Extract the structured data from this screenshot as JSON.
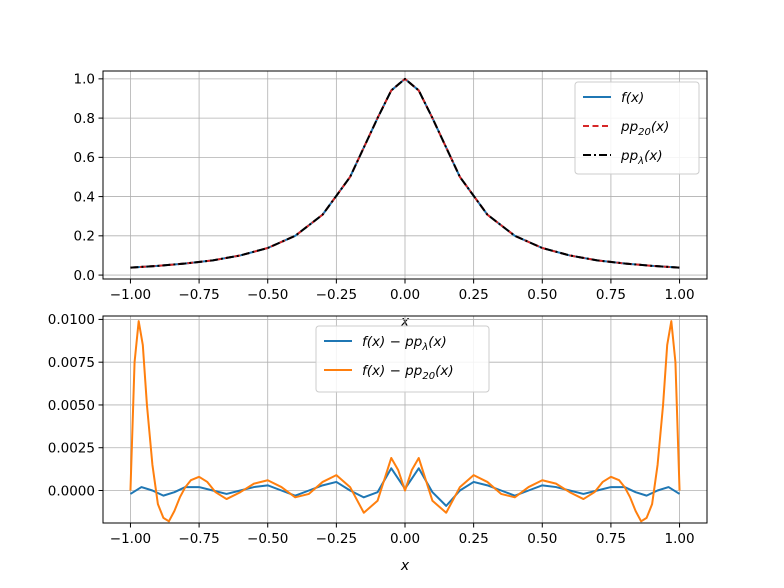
{
  "chart_data": [
    {
      "type": "line",
      "id": "top",
      "title": "",
      "xlabel": "x",
      "ylabel": "",
      "xlim": [
        -1.1,
        1.1
      ],
      "ylim": [
        -0.02,
        1.04
      ],
      "grid": true,
      "legend_position": "top-right",
      "xticks": [
        -1.0,
        -0.75,
        -0.5,
        -0.25,
        0.0,
        0.25,
        0.5,
        0.75,
        1.0
      ],
      "xtick_labels": [
        "−1.00",
        "−0.75",
        "−0.50",
        "−0.25",
        "0.00",
        "0.25",
        "0.50",
        "0.75",
        "1.00"
      ],
      "yticks": [
        0.0,
        0.2,
        0.4,
        0.6,
        0.8,
        1.0
      ],
      "ytick_labels": [
        "0.0",
        "0.2",
        "0.4",
        "0.6",
        "0.8",
        "1.0"
      ],
      "x": [
        -1.0,
        -0.9,
        -0.8,
        -0.7,
        -0.6,
        -0.5,
        -0.4,
        -0.3,
        -0.2,
        -0.1,
        -0.05,
        0.0,
        0.05,
        0.1,
        0.2,
        0.3,
        0.4,
        0.5,
        0.6,
        0.7,
        0.8,
        0.9,
        1.0
      ],
      "series": [
        {
          "name": "f(x)",
          "color": "#1f77b4",
          "dash": "solid",
          "values": [
            0.038,
            0.047,
            0.059,
            0.075,
            0.1,
            0.138,
            0.2,
            0.308,
            0.5,
            0.8,
            0.941,
            1.0,
            0.941,
            0.8,
            0.5,
            0.308,
            0.2,
            0.138,
            0.1,
            0.075,
            0.059,
            0.047,
            0.038
          ]
        },
        {
          "name": "pp20(x)",
          "color": "#d62728",
          "dash": "dashed",
          "values": [
            0.038,
            0.047,
            0.059,
            0.075,
            0.1,
            0.138,
            0.2,
            0.308,
            0.5,
            0.8,
            0.941,
            1.0,
            0.941,
            0.8,
            0.5,
            0.308,
            0.2,
            0.138,
            0.1,
            0.075,
            0.059,
            0.047,
            0.038
          ]
        },
        {
          "name": "ppλ(x)",
          "color": "#000000",
          "dash": "dashdot",
          "values": [
            0.038,
            0.047,
            0.059,
            0.075,
            0.1,
            0.138,
            0.2,
            0.308,
            0.5,
            0.8,
            0.941,
            1.0,
            0.941,
            0.8,
            0.5,
            0.308,
            0.2,
            0.138,
            0.1,
            0.075,
            0.059,
            0.047,
            0.038
          ]
        }
      ],
      "legend": [
        {
          "math": "f",
          "plain": "(x)",
          "sub": "",
          "color": "#1f77b4",
          "dash": "solid"
        },
        {
          "math": "pp",
          "plain": "(x)",
          "sub": "20",
          "color": "#d62728",
          "dash": "dashed"
        },
        {
          "math": "pp",
          "plain": "(x)",
          "sub": "λ",
          "color": "#000000",
          "dash": "dashdot"
        }
      ]
    },
    {
      "type": "line",
      "id": "bottom",
      "title": "",
      "xlabel": "x",
      "ylabel": "",
      "xlim": [
        -1.1,
        1.1
      ],
      "ylim": [
        -0.0019,
        0.0102
      ],
      "grid": true,
      "legend_position": "top-center",
      "xticks": [
        -1.0,
        -0.75,
        -0.5,
        -0.25,
        0.0,
        0.25,
        0.5,
        0.75,
        1.0
      ],
      "xtick_labels": [
        "−1.00",
        "−0.75",
        "−0.50",
        "−0.25",
        "0.00",
        "0.25",
        "0.50",
        "0.75",
        "1.00"
      ],
      "yticks": [
        0.0,
        0.0025,
        0.005,
        0.0075,
        0.01
      ],
      "ytick_labels": [
        "0.0000",
        "0.0025",
        "0.0050",
        "0.0075",
        "0.0100"
      ],
      "series": [
        {
          "name": "f(x) − ppλ(x)",
          "color": "#1f77b4",
          "x": [
            -1.0,
            -0.96,
            -0.92,
            -0.88,
            -0.84,
            -0.8,
            -0.75,
            -0.7,
            -0.65,
            -0.6,
            -0.55,
            -0.5,
            -0.45,
            -0.4,
            -0.35,
            -0.3,
            -0.25,
            -0.2,
            -0.15,
            -0.1,
            -0.05,
            0.0,
            0.05,
            0.1,
            0.15,
            0.2,
            0.25,
            0.3,
            0.35,
            0.4,
            0.45,
            0.5,
            0.55,
            0.6,
            0.65,
            0.7,
            0.75,
            0.8,
            0.84,
            0.88,
            0.92,
            0.96,
            1.0
          ],
          "values": [
            -0.0002,
            0.0002,
            0.0,
            -0.0003,
            -0.0001,
            0.0002,
            0.0002,
            0.0,
            -0.0002,
            0.0,
            0.0002,
            0.0003,
            0.0,
            -0.0003,
            0.0,
            0.0003,
            0.0005,
            0.0,
            -0.0004,
            -0.0001,
            0.0013,
            0.0001,
            0.0013,
            -0.0001,
            -0.0009,
            0.0,
            0.0005,
            0.0003,
            0.0,
            -0.0003,
            0.0,
            0.0003,
            0.0002,
            0.0,
            -0.0002,
            0.0,
            0.0002,
            0.0002,
            -0.0001,
            -0.0003,
            0.0,
            0.0002,
            -0.0002
          ]
        },
        {
          "name": "f(x) − pp20(x)",
          "color": "#ff7f0e",
          "x": [
            -1.0,
            -0.985,
            -0.97,
            -0.955,
            -0.94,
            -0.92,
            -0.9,
            -0.88,
            -0.86,
            -0.84,
            -0.82,
            -0.8,
            -0.78,
            -0.75,
            -0.72,
            -0.69,
            -0.65,
            -0.6,
            -0.55,
            -0.5,
            -0.45,
            -0.4,
            -0.35,
            -0.3,
            -0.25,
            -0.2,
            -0.15,
            -0.1,
            -0.05,
            -0.025,
            0.0,
            0.025,
            0.05,
            0.1,
            0.15,
            0.2,
            0.25,
            0.3,
            0.35,
            0.4,
            0.45,
            0.5,
            0.55,
            0.6,
            0.65,
            0.69,
            0.72,
            0.75,
            0.78,
            0.8,
            0.82,
            0.84,
            0.86,
            0.88,
            0.9,
            0.92,
            0.94,
            0.955,
            0.97,
            0.985,
            1.0
          ],
          "values": [
            0.0,
            0.0075,
            0.0099,
            0.0085,
            0.005,
            0.0015,
            -0.0008,
            -0.0016,
            -0.0018,
            -0.0012,
            -0.0004,
            0.0002,
            0.0006,
            0.0008,
            0.0005,
            -0.0001,
            -0.0005,
            -0.0001,
            0.0004,
            0.0006,
            0.0002,
            -0.0004,
            -0.0002,
            0.0005,
            0.0009,
            0.0002,
            -0.0013,
            -0.0006,
            0.0019,
            0.0012,
            0.0,
            0.0012,
            0.0019,
            -0.0006,
            -0.0013,
            0.0002,
            0.0009,
            0.0005,
            -0.0002,
            -0.0004,
            0.0002,
            0.0006,
            0.0004,
            -0.0001,
            -0.0005,
            -0.0001,
            0.0005,
            0.0008,
            0.0006,
            0.0002,
            -0.0004,
            -0.0012,
            -0.0018,
            -0.0016,
            -0.0008,
            0.0015,
            0.005,
            0.0085,
            0.0099,
            0.0075,
            0.0
          ]
        }
      ],
      "legend": [
        {
          "math": "f",
          "plain": "(x) − pp",
          "sub": "λ",
          "tail": "(x)",
          "color": "#1f77b4"
        },
        {
          "math": "f",
          "plain": "(x) − pp",
          "sub": "20",
          "tail": "(x)",
          "color": "#ff7f0e"
        }
      ]
    }
  ]
}
